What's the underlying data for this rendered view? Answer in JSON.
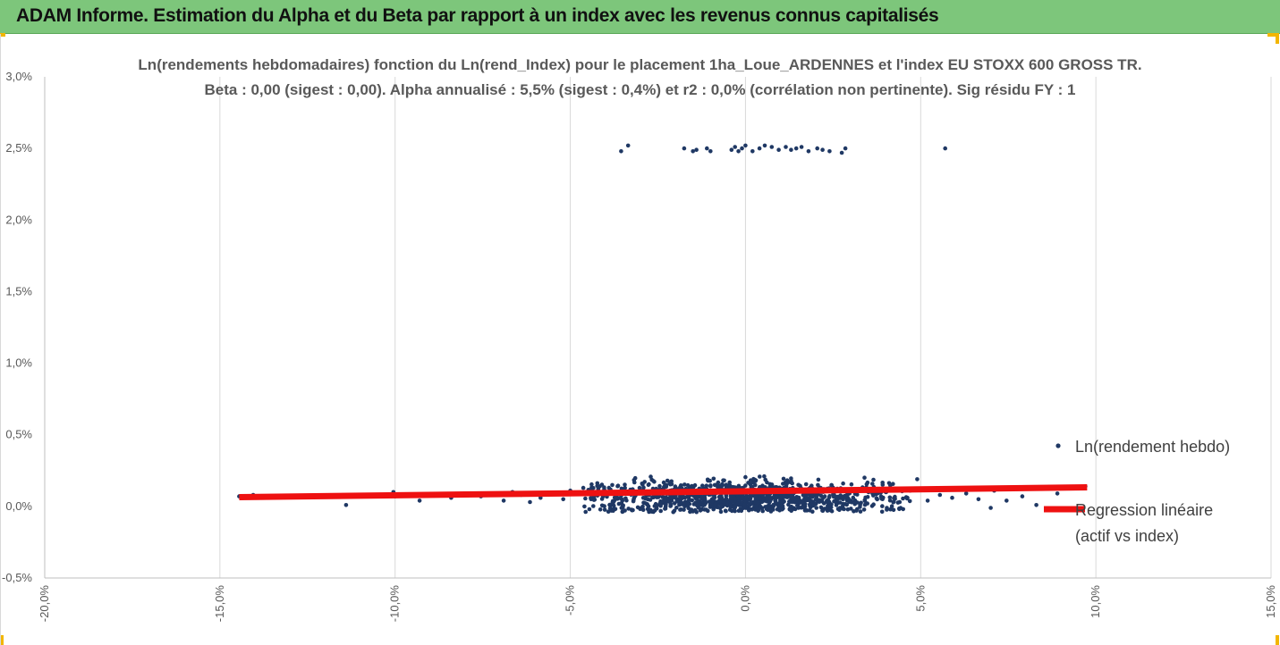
{
  "header": {
    "title": "ADAM Informe. Estimation du Alpha et du Beta par rapport à un index avec les revenus connus capitalisés"
  },
  "chart_data": {
    "type": "scatter",
    "title_line1": "Ln(rendements hebdomadaires) fonction du Ln(rend_Index) pour le placement 1ha_Loue_ARDENNES et l'index EU STOXX 600 GROSS TR.",
    "title_line2": "Beta : 0,00 (sigest : 0,00). Alpha annualisé : 5,5% (sigest : 0,4%) et r2 : 0,0% (corrélation non pertinente). Sig résidu FY : 1",
    "xlim": [
      -0.2,
      0.15
    ],
    "ylim": [
      -0.005,
      0.03
    ],
    "x_ticks": [
      {
        "v": -0.2,
        "label": "-20,0%"
      },
      {
        "v": -0.15,
        "label": "-15,0%"
      },
      {
        "v": -0.1,
        "label": "-10,0%"
      },
      {
        "v": -0.05,
        "label": "-5,0%"
      },
      {
        "v": 0.0,
        "label": "0,0%"
      },
      {
        "v": 0.05,
        "label": "5,0%"
      },
      {
        "v": 0.1,
        "label": "10,0%"
      },
      {
        "v": 0.15,
        "label": "15,0%"
      }
    ],
    "y_ticks": [
      {
        "v": -0.005,
        "label": "-0,5%"
      },
      {
        "v": 0.0,
        "label": "0,0%"
      },
      {
        "v": 0.005,
        "label": "0,5%"
      },
      {
        "v": 0.01,
        "label": "1,0%"
      },
      {
        "v": 0.015,
        "label": "1,5%"
      },
      {
        "v": 0.02,
        "label": "2,0%"
      },
      {
        "v": 0.025,
        "label": "2,5%"
      },
      {
        "v": 0.03,
        "label": "3,0%"
      }
    ],
    "grid": "vertical",
    "legend_position": "right",
    "series": [
      {
        "name": "Ln(rendement hebdo)",
        "color": "#1f3864",
        "upper_cluster": [
          [
            -0.0355,
            0.0248
          ],
          [
            -0.0335,
            0.0252
          ],
          [
            -0.0175,
            0.025
          ],
          [
            -0.015,
            0.0248
          ],
          [
            -0.014,
            0.0249
          ],
          [
            -0.011,
            0.025
          ],
          [
            -0.01,
            0.0248
          ],
          [
            -0.004,
            0.0249
          ],
          [
            -0.003,
            0.0251
          ],
          [
            -0.002,
            0.0248
          ],
          [
            -0.001,
            0.025
          ],
          [
            0.0,
            0.0252
          ],
          [
            0.002,
            0.0248
          ],
          [
            0.004,
            0.025
          ],
          [
            0.0055,
            0.0252
          ],
          [
            0.0075,
            0.0251
          ],
          [
            0.0095,
            0.0249
          ],
          [
            0.0115,
            0.0251
          ],
          [
            0.013,
            0.0249
          ],
          [
            0.0145,
            0.025
          ],
          [
            0.016,
            0.0251
          ],
          [
            0.018,
            0.0248
          ],
          [
            0.0205,
            0.025
          ],
          [
            0.022,
            0.0249
          ],
          [
            0.024,
            0.0248
          ],
          [
            0.0275,
            0.0247
          ],
          [
            0.0285,
            0.025
          ],
          [
            0.057,
            0.025
          ]
        ],
        "outliers": [
          [
            -0.1445,
            0.0007
          ],
          [
            -0.1405,
            0.0008
          ],
          [
            -0.114,
            0.0001
          ],
          [
            -0.1005,
            0.001
          ],
          [
            -0.1,
            0.0007
          ],
          [
            -0.093,
            0.0004
          ],
          [
            -0.084,
            0.0006
          ],
          [
            -0.0755,
            0.0007
          ],
          [
            -0.069,
            0.0004
          ],
          [
            -0.0665,
            0.001
          ],
          [
            -0.064,
            0.0008
          ],
          [
            -0.0615,
            0.0003
          ],
          [
            -0.0585,
            0.0006
          ],
          [
            -0.0555,
            0.0009
          ],
          [
            -0.052,
            0.0005
          ],
          [
            -0.05,
            0.0011
          ],
          [
            0.047,
            0.0011
          ],
          [
            0.049,
            0.0019
          ],
          [
            0.052,
            0.0004
          ],
          [
            0.0555,
            0.0008
          ],
          [
            0.059,
            0.0006
          ],
          [
            0.063,
            0.0009
          ],
          [
            0.0665,
            0.0005
          ],
          [
            0.071,
            0.0011
          ],
          [
            0.0745,
            0.0004
          ],
          [
            0.079,
            0.0007
          ],
          [
            0.083,
            0.0001
          ],
          [
            0.089,
            0.0009
          ],
          [
            0.07,
            -0.0001
          ],
          [
            0.077,
            0.0013
          ],
          [
            0.097,
            0.0014
          ]
        ],
        "cluster": {
          "count": 1100,
          "x_center": 0.0,
          "x_spread": 0.022,
          "y_center": 0.0006,
          "y_spread": 0.0006
        }
      },
      {
        "name": "Regression linéaire",
        "name_line2": "(actif vs index)",
        "color": "#ee1111",
        "line": [
          [
            -0.1445,
            0.00065
          ],
          [
            0.0975,
            0.00133
          ]
        ]
      }
    ]
  }
}
